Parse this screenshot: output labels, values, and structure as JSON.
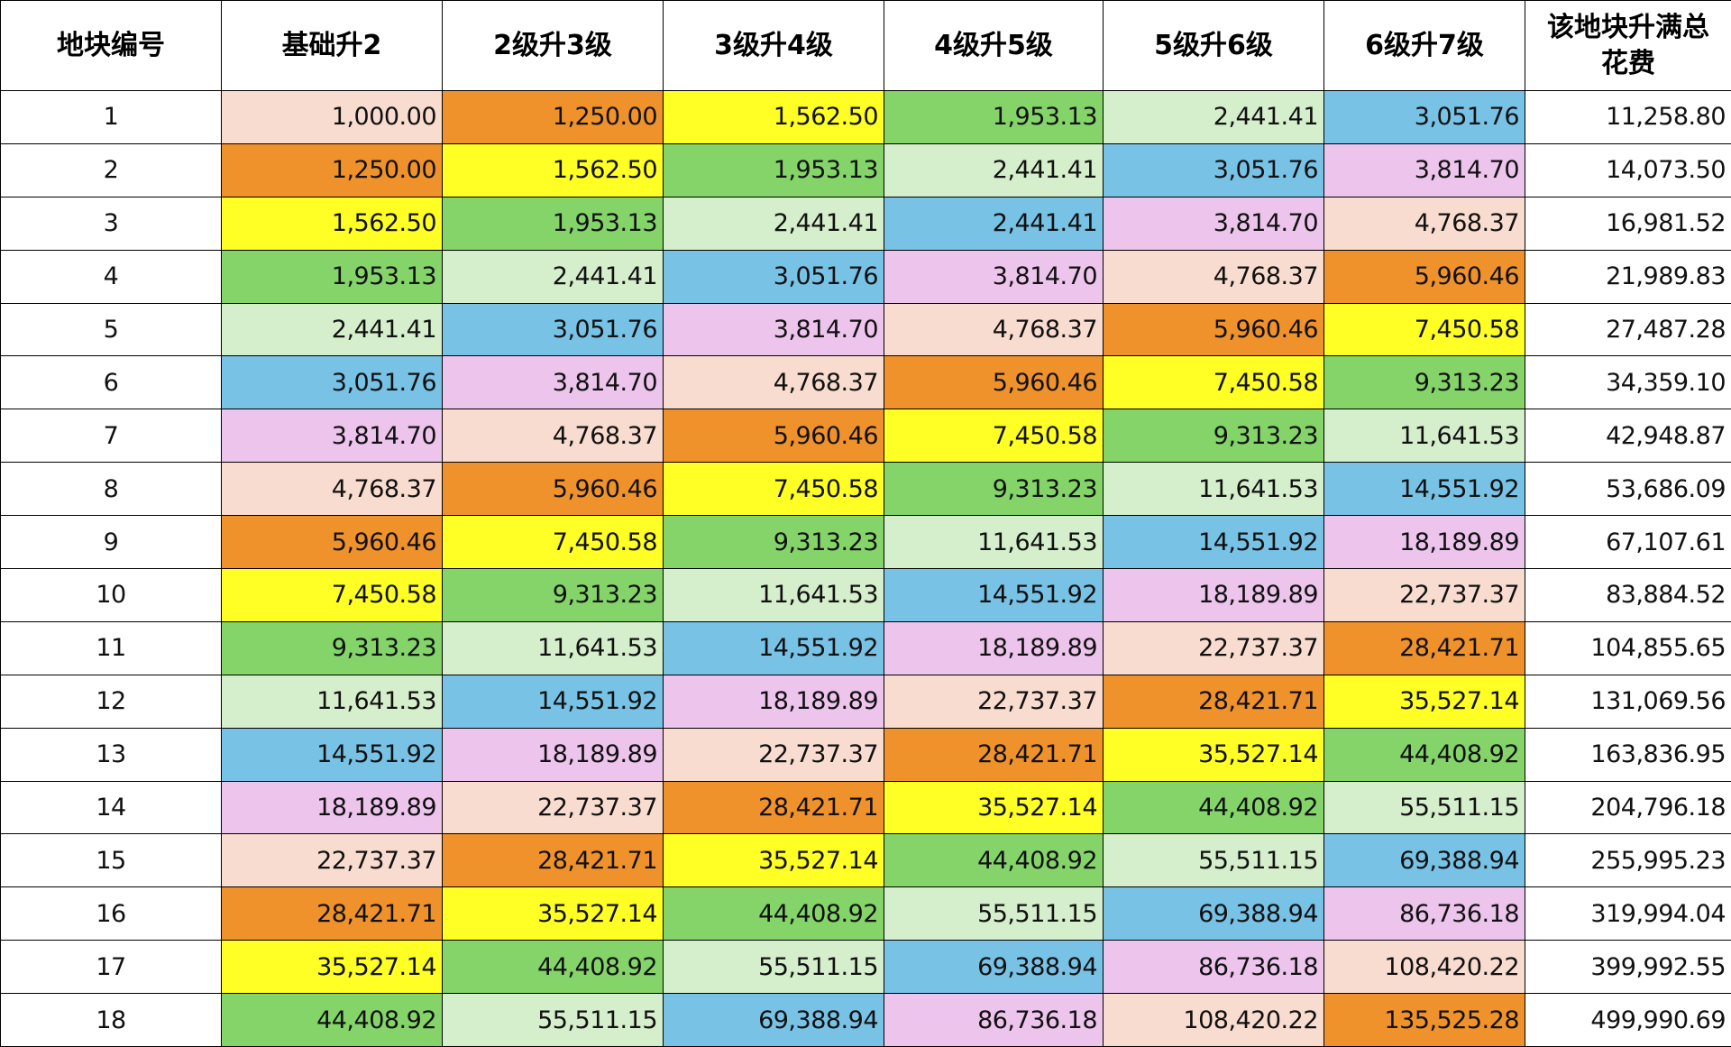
{
  "table": {
    "header": [
      "地块编号",
      "基础升2",
      "2级升3级",
      "3级升4级",
      "4级升5级",
      "5级升6级",
      "6级升7级",
      "该地块升满总花费"
    ],
    "rows": [
      [
        "1",
        "1,000.00",
        "1,250.00",
        "1,562.50",
        "1,953.13",
        "2,441.41",
        "3,051.76",
        "11,258.80"
      ],
      [
        "2",
        "1,250.00",
        "1,562.50",
        "1,953.13",
        "2,441.41",
        "3,051.76",
        "3,814.70",
        "14,073.50"
      ],
      [
        "3",
        "1,562.50",
        "1,953.13",
        "2,441.41",
        "2,441.41",
        "3,814.70",
        "4,768.37",
        "16,981.52"
      ],
      [
        "4",
        "1,953.13",
        "2,441.41",
        "3,051.76",
        "3,814.70",
        "4,768.37",
        "5,960.46",
        "21,989.83"
      ],
      [
        "5",
        "2,441.41",
        "3,051.76",
        "3,814.70",
        "4,768.37",
        "5,960.46",
        "7,450.58",
        "27,487.28"
      ],
      [
        "6",
        "3,051.76",
        "3,814.70",
        "4,768.37",
        "5,960.46",
        "7,450.58",
        "9,313.23",
        "34,359.10"
      ],
      [
        "7",
        "3,814.70",
        "4,768.37",
        "5,960.46",
        "7,450.58",
        "9,313.23",
        "11,641.53",
        "42,948.87"
      ],
      [
        "8",
        "4,768.37",
        "5,960.46",
        "7,450.58",
        "9,313.23",
        "11,641.53",
        "14,551.92",
        "53,686.09"
      ],
      [
        "9",
        "5,960.46",
        "7,450.58",
        "9,313.23",
        "11,641.53",
        "14,551.92",
        "18,189.89",
        "67,107.61"
      ],
      [
        "10",
        "7,450.58",
        "9,313.23",
        "11,641.53",
        "14,551.92",
        "18,189.89",
        "22,737.37",
        "83,884.52"
      ],
      [
        "11",
        "9,313.23",
        "11,641.53",
        "14,551.92",
        "18,189.89",
        "22,737.37",
        "28,421.71",
        "104,855.65"
      ],
      [
        "12",
        "11,641.53",
        "14,551.92",
        "18,189.89",
        "22,737.37",
        "28,421.71",
        "35,527.14",
        "131,069.56"
      ],
      [
        "13",
        "14,551.92",
        "18,189.89",
        "22,737.37",
        "28,421.71",
        "35,527.14",
        "44,408.92",
        "163,836.95"
      ],
      [
        "14",
        "18,189.89",
        "22,737.37",
        "28,421.71",
        "35,527.14",
        "44,408.92",
        "55,511.15",
        "204,796.18"
      ],
      [
        "15",
        "22,737.37",
        "28,421.71",
        "35,527.14",
        "44,408.92",
        "55,511.15",
        "69,388.94",
        "255,995.23"
      ],
      [
        "16",
        "28,421.71",
        "35,527.14",
        "44,408.92",
        "55,511.15",
        "69,388.94",
        "86,736.18",
        "319,994.04"
      ],
      [
        "17",
        "35,527.14",
        "44,408.92",
        "55,511.15",
        "69,388.94",
        "86,736.18",
        "108,420.22",
        "399,992.55"
      ],
      [
        "18",
        "44,408.92",
        "55,511.15",
        "69,388.94",
        "86,736.18",
        "108,420.22",
        "135,525.28",
        "499,990.69"
      ]
    ]
  }
}
